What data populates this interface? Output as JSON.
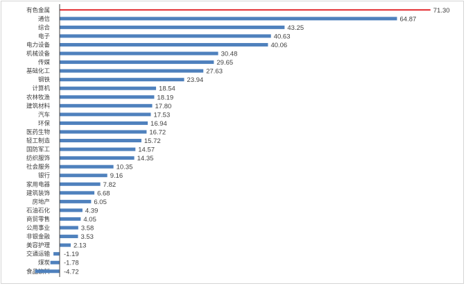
{
  "chart_data": {
    "type": "bar",
    "orientation": "horizontal",
    "title": "",
    "xlabel": "",
    "ylabel": "",
    "categories": [
      "有色金属",
      "通信",
      "综合",
      "电子",
      "电力设备",
      "机械设备",
      "传媒",
      "基础化工",
      "钢铁",
      "计算机",
      "农林牧渔",
      "建筑材料",
      "汽车",
      "环保",
      "医药生物",
      "轻工制造",
      "国防军工",
      "纺织服饰",
      "社会服务",
      "银行",
      "家用电器",
      "建筑装饰",
      "房地产",
      "石油石化",
      "商贸零售",
      "公用事业",
      "非银金融",
      "美容护理",
      "交通运输",
      "煤炭",
      "食品饮料"
    ],
    "values": [
      71.3,
      64.87,
      43.25,
      40.63,
      40.06,
      30.48,
      29.65,
      27.63,
      23.94,
      18.54,
      18.19,
      17.8,
      17.53,
      16.94,
      16.72,
      15.72,
      14.57,
      14.35,
      10.35,
      9.16,
      7.82,
      6.68,
      6.05,
      4.39,
      4.05,
      3.58,
      3.53,
      2.13,
      -1.19,
      -1.78,
      -4.72
    ],
    "value_labels": [
      "71.30",
      "64.87",
      "43.25",
      "40.63",
      "40.06",
      "30.48",
      "29.65",
      "27.63",
      "23.94",
      "18.54",
      "18.19",
      "17.80",
      "17.53",
      "16.94",
      "16.72",
      "15.72",
      "14.57",
      "14.35",
      "10.35",
      "9.16",
      "7.82",
      "6.68",
      "6.05",
      "4.39",
      "4.05",
      "3.58",
      "3.53",
      "2.13",
      "-1.19",
      "-1.78",
      "-4.72"
    ],
    "xlim": [
      -6,
      75
    ],
    "grid": false,
    "legend": "none",
    "colors": {
      "bar": "#4f81bd",
      "highlight": "#e3262b",
      "axis": "#404040"
    }
  }
}
